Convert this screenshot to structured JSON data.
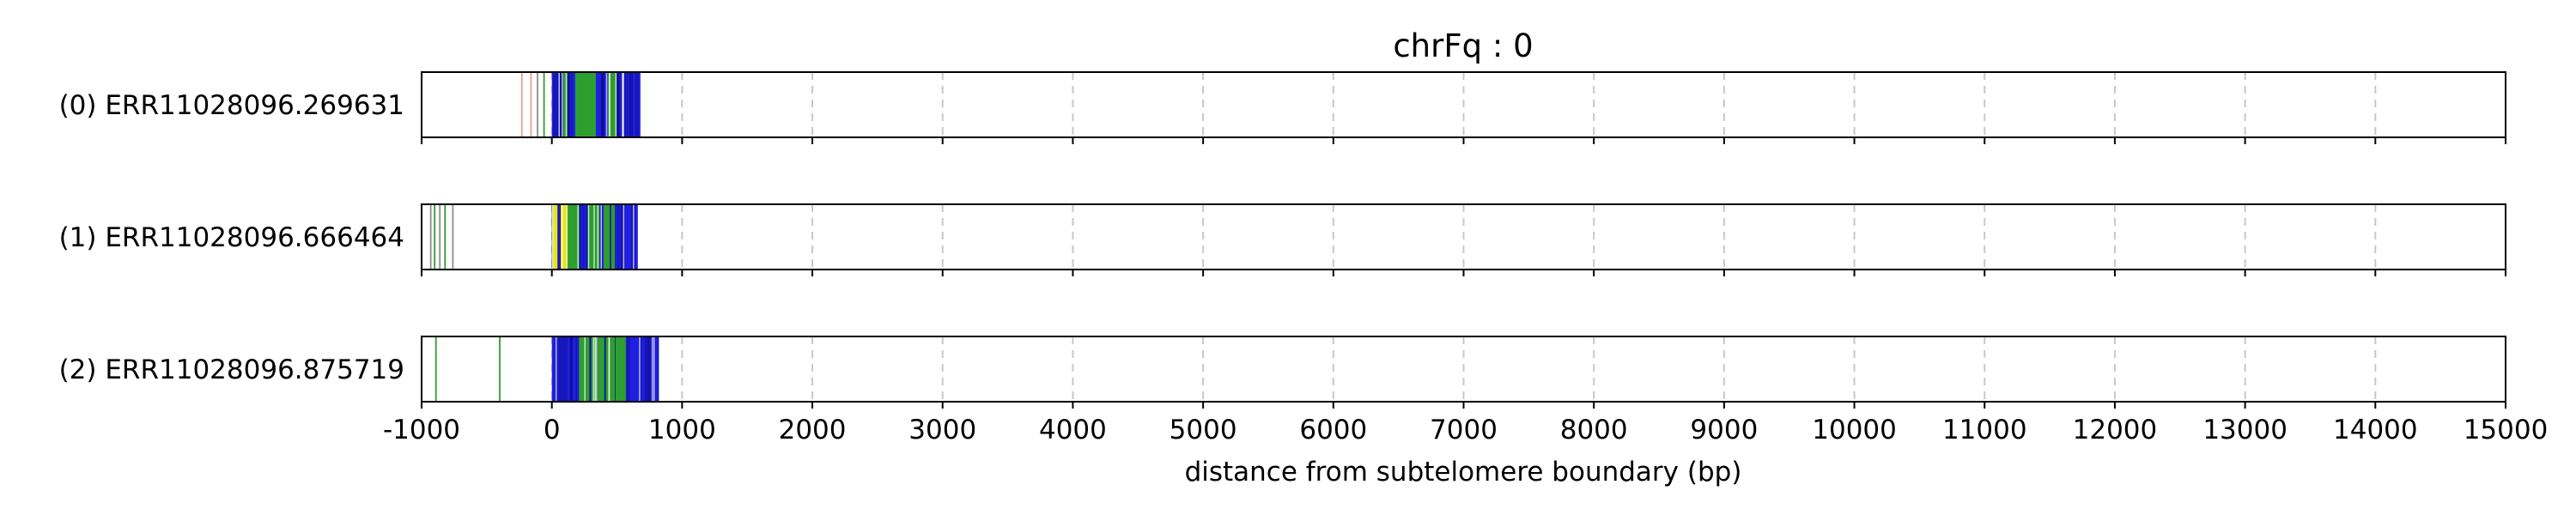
{
  "chart_data": {
    "type": "track-plot",
    "title": "chrFq : 0",
    "xlabel": "distance from subtelomere boundary (bp)",
    "xlim": [
      -1000,
      15000
    ],
    "xticks": [
      -1000,
      0,
      1000,
      2000,
      3000,
      4000,
      5000,
      6000,
      7000,
      8000,
      9000,
      10000,
      11000,
      12000,
      13000,
      14000,
      15000
    ],
    "xtick_labels": [
      "-1000",
      "0",
      "1000",
      "2000",
      "3000",
      "4000",
      "5000",
      "6000",
      "7000",
      "8000",
      "9000",
      "10000",
      "11000",
      "12000",
      "13000",
      "14000",
      "15000"
    ],
    "grid": "vertical dashed at x ticks",
    "colors": {
      "blue": "#1f1fe0",
      "green": "#2e9e2e",
      "yellow": "#e6e61a",
      "grey": "#8c8c8c",
      "salmon": "#e8a090"
    },
    "reads": [
      {
        "label": "(2) ERR11028096.875719",
        "marks": [
          {
            "x": -890,
            "color": "green"
          },
          {
            "x": -400,
            "color": "green"
          }
        ],
        "dense": [
          {
            "start": 0,
            "end": 820,
            "base": "blue",
            "accents": [
              {
                "from": 150,
                "to": 600,
                "color": "green",
                "count": 14
              }
            ]
          }
        ]
      },
      {
        "label": "(1) ERR11028096.666464",
        "marks": [
          {
            "x": -930,
            "color": "grey"
          },
          {
            "x": -900,
            "color": "green"
          },
          {
            "x": -860,
            "color": "grey"
          },
          {
            "x": -820,
            "color": "green"
          },
          {
            "x": -760,
            "color": "grey"
          }
        ],
        "dense": [
          {
            "start": 0,
            "end": 660,
            "base": "blue",
            "accents": [
              {
                "from": 0,
                "to": 260,
                "color": "yellow",
                "count": 10
              },
              {
                "from": 100,
                "to": 500,
                "color": "green",
                "count": 10
              }
            ]
          }
        ]
      },
      {
        "label": "(0) ERR11028096.269631",
        "marks": [
          {
            "x": -230,
            "color": "salmon"
          },
          {
            "x": -160,
            "color": "salmon"
          },
          {
            "x": -110,
            "color": "grey"
          },
          {
            "x": -60,
            "color": "green"
          }
        ],
        "dense": [
          {
            "start": 0,
            "end": 680,
            "base": "blue",
            "accents": [
              {
                "from": 80,
                "to": 560,
                "color": "green",
                "count": 14
              }
            ]
          }
        ]
      }
    ]
  }
}
